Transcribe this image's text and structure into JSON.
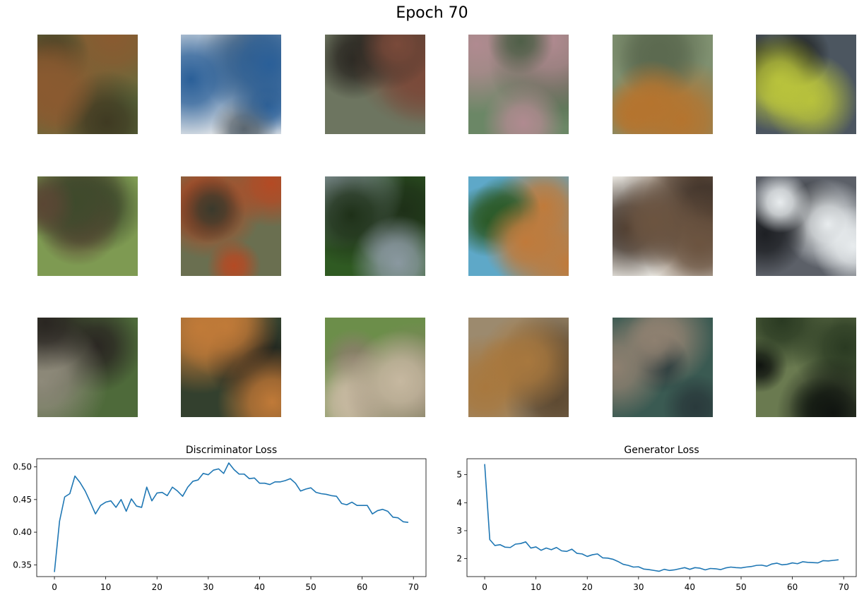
{
  "figure": {
    "title": "Epoch 70"
  },
  "samples": [
    {
      "name": "generated-sample-1-1",
      "base": "#5f7040",
      "hi": "#8a5a30",
      "lo": "#3f3a22"
    },
    {
      "name": "generated-sample-1-2",
      "base": "#e6e8ea",
      "hi": "#2a5f98",
      "lo": "#5a6670"
    },
    {
      "name": "generated-sample-1-3",
      "base": "#6d7560",
      "hi": "#7a4a3a",
      "lo": "#2d2a24"
    },
    {
      "name": "generated-sample-1-4",
      "base": "#6b8766",
      "hi": "#b08a90",
      "lo": "#4f5f48"
    },
    {
      "name": "generated-sample-1-5",
      "base": "#7f9070",
      "hi": "#b5742e",
      "lo": "#5c6a50"
    },
    {
      "name": "generated-sample-1-6",
      "base": "#4c5660",
      "hi": "#b8c23c",
      "lo": "#1f2220"
    },
    {
      "name": "generated-sample-2-1",
      "base": "#7e9a52",
      "hi": "#5a4634",
      "lo": "#3e4a2c"
    },
    {
      "name": "generated-sample-2-2",
      "base": "#6a6f50",
      "hi": "#b44a24",
      "lo": "#3a3a2c"
    },
    {
      "name": "generated-sample-2-3",
      "base": "#2f5a22",
      "hi": "#8a98a0",
      "lo": "#1e3018"
    },
    {
      "name": "generated-sample-2-4",
      "base": "#5ea8c8",
      "hi": "#c07a3a",
      "lo": "#2c5a28"
    },
    {
      "name": "generated-sample-2-5",
      "base": "#f2f0ea",
      "hi": "#6c5440",
      "lo": "#3a2e26"
    },
    {
      "name": "generated-sample-2-6",
      "base": "#5c6068",
      "hi": "#e8ecee",
      "lo": "#1e2024"
    },
    {
      "name": "generated-sample-3-1",
      "base": "#4e6a3a",
      "hi": "#2a2622",
      "lo": "#8e8a7a"
    },
    {
      "name": "generated-sample-3-2",
      "base": "#33402e",
      "hi": "#c07a38",
      "lo": "#1c1e1a"
    },
    {
      "name": "generated-sample-3-3",
      "base": "#6c8e4a",
      "hi": "#c6b8a0",
      "lo": "#8a7e6a"
    },
    {
      "name": "generated-sample-3-4",
      "base": "#9c8a6e",
      "hi": "#a8783e",
      "lo": "#5e4a32"
    },
    {
      "name": "generated-sample-3-5",
      "base": "#3a5a52",
      "hi": "#8e8070",
      "lo": "#2a3a3c"
    },
    {
      "name": "generated-sample-3-6",
      "base": "#6a7a50",
      "hi": "#2a3a22",
      "lo": "#101410"
    }
  ],
  "chart_data": [
    {
      "type": "line",
      "title": "Discriminator Loss",
      "xlabel": "",
      "ylabel": "",
      "xlim": [
        -3.45,
        72.45
      ],
      "ylim": [
        0.332,
        0.5125
      ],
      "xticks": [
        0,
        10,
        20,
        30,
        40,
        50,
        60,
        70
      ],
      "yticks": [
        0.35,
        0.4,
        0.45,
        0.5
      ],
      "ytick_labels": [
        "0.35",
        "0.40",
        "0.45",
        "0.50"
      ],
      "color": "#1f77b4",
      "x": [
        0,
        1,
        2,
        3,
        4,
        5,
        6,
        7,
        8,
        9,
        10,
        11,
        12,
        13,
        14,
        15,
        16,
        17,
        18,
        19,
        20,
        21,
        22,
        23,
        24,
        25,
        26,
        27,
        28,
        29,
        30,
        31,
        32,
        33,
        34,
        35,
        36,
        37,
        38,
        39,
        40,
        41,
        42,
        43,
        44,
        45,
        46,
        47,
        48,
        49,
        50,
        51,
        52,
        53,
        54,
        55,
        56,
        57,
        58,
        59,
        60,
        61,
        62,
        63,
        64,
        65,
        66,
        67,
        68,
        69
      ],
      "values": [
        0.339,
        0.417,
        0.454,
        0.459,
        0.486,
        0.476,
        0.463,
        0.446,
        0.428,
        0.441,
        0.446,
        0.448,
        0.438,
        0.45,
        0.432,
        0.451,
        0.44,
        0.438,
        0.469,
        0.448,
        0.46,
        0.461,
        0.456,
        0.469,
        0.463,
        0.455,
        0.469,
        0.478,
        0.48,
        0.49,
        0.488,
        0.495,
        0.497,
        0.49,
        0.506,
        0.496,
        0.489,
        0.489,
        0.482,
        0.483,
        0.475,
        0.475,
        0.473,
        0.477,
        0.477,
        0.479,
        0.482,
        0.475,
        0.463,
        0.466,
        0.468,
        0.461,
        0.459,
        0.458,
        0.456,
        0.455,
        0.444,
        0.442,
        0.446,
        0.441,
        0.441,
        0.441,
        0.428,
        0.433,
        0.435,
        0.432,
        0.423,
        0.422,
        0.416,
        0.415
      ]
    },
    {
      "type": "line",
      "title": "Generator Loss",
      "xlabel": "",
      "ylabel": "",
      "xlim": [
        -3.45,
        72.45
      ],
      "ylim": [
        1.36,
        5.57
      ],
      "xticks": [
        0,
        10,
        20,
        30,
        40,
        50,
        60,
        70
      ],
      "yticks": [
        2,
        3,
        4,
        5
      ],
      "ytick_labels": [
        "2",
        "3",
        "4",
        "5"
      ],
      "color": "#1f77b4",
      "x": [
        0,
        1,
        2,
        3,
        4,
        5,
        6,
        7,
        8,
        9,
        10,
        11,
        12,
        13,
        14,
        15,
        16,
        17,
        18,
        19,
        20,
        21,
        22,
        23,
        24,
        25,
        26,
        27,
        28,
        29,
        30,
        31,
        32,
        33,
        34,
        35,
        36,
        37,
        38,
        39,
        40,
        41,
        42,
        43,
        44,
        45,
        46,
        47,
        48,
        49,
        50,
        51,
        52,
        53,
        54,
        55,
        56,
        57,
        58,
        59,
        60,
        61,
        62,
        63,
        64,
        65,
        66,
        67,
        68,
        69
      ],
      "values": [
        5.38,
        2.68,
        2.47,
        2.5,
        2.41,
        2.4,
        2.52,
        2.54,
        2.6,
        2.38,
        2.42,
        2.3,
        2.38,
        2.32,
        2.4,
        2.28,
        2.26,
        2.34,
        2.19,
        2.17,
        2.08,
        2.14,
        2.17,
        2.03,
        2.02,
        1.98,
        1.9,
        1.8,
        1.76,
        1.7,
        1.71,
        1.63,
        1.61,
        1.58,
        1.55,
        1.62,
        1.58,
        1.6,
        1.64,
        1.68,
        1.62,
        1.68,
        1.66,
        1.6,
        1.65,
        1.64,
        1.61,
        1.67,
        1.7,
        1.68,
        1.67,
        1.7,
        1.72,
        1.76,
        1.77,
        1.73,
        1.81,
        1.84,
        1.78,
        1.8,
        1.85,
        1.82,
        1.89,
        1.87,
        1.86,
        1.85,
        1.93,
        1.92,
        1.94,
        1.96
      ]
    }
  ]
}
